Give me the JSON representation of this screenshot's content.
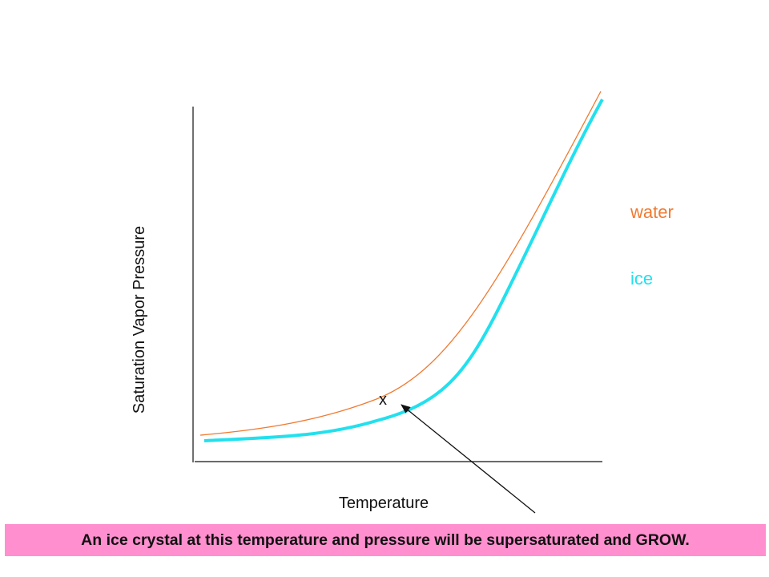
{
  "diagram": {
    "y_axis_label": "Saturation Vapor Pressure",
    "x_axis_label": "Temperature",
    "marker_label": "x",
    "curves": [
      {
        "name": "water",
        "color": "#f07a30"
      },
      {
        "name": "ice",
        "color": "#22e0ee"
      }
    ],
    "arrow_color": "#111111"
  },
  "caption": "An ice crystal at this temperature and pressure will be supersaturated and GROW.",
  "colors": {
    "caption_background": "#ff8fcf",
    "water": "#f07a30",
    "ice": "#22e0ee"
  }
}
